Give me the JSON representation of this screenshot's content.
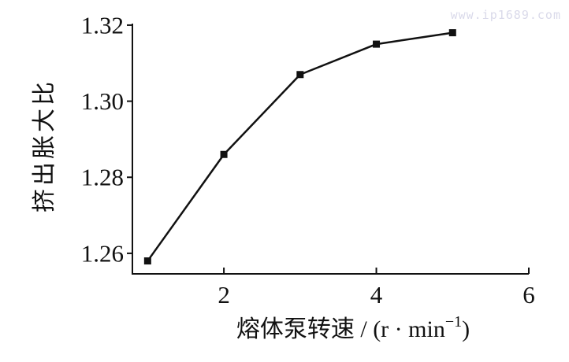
{
  "watermark": "www.ip1689.com",
  "colors": {
    "background": "#ffffff",
    "axis": "#111111",
    "line": "#111111",
    "marker": "#111111",
    "tick_text": "#111111",
    "watermark": "#dadaea"
  },
  "chart_data": {
    "type": "line",
    "title": "",
    "xlabel": "熔体泵转速/(r·min⁻¹)",
    "xlabel_parts": {
      "base": "熔体泵转速 / (r · min",
      "sup": "−1",
      "close": ")"
    },
    "ylabel": "挤出胀大比",
    "x": [
      1,
      2,
      3,
      4,
      5
    ],
    "y": [
      1.258,
      1.286,
      1.307,
      1.315,
      1.318
    ],
    "xticks": [
      "2",
      "4",
      "6"
    ],
    "yticks": [
      "1.26",
      "1.28",
      "1.30",
      "1.32"
    ],
    "xlim": [
      0.8,
      6.0
    ],
    "ylim": [
      1.2546,
      1.3204
    ],
    "grid": false,
    "legend": "none",
    "marker": "filled-square",
    "line_width": 2.5,
    "marker_size": 9
  }
}
